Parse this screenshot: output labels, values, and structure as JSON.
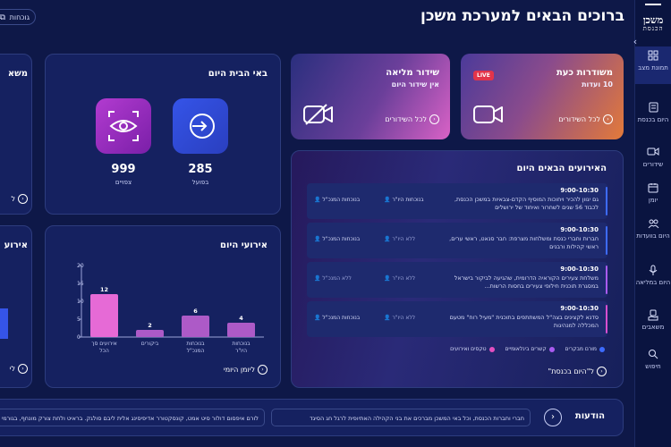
{
  "app": {
    "logo_line1": "משכן",
    "logo_line2": "הכנסת",
    "title": "ברוכים הבאים למערכת משכן",
    "header_link": "גוכחות"
  },
  "sidebar": {
    "items": [
      {
        "label": "תמונת מצב",
        "icon": "grid-icon"
      },
      {
        "label": "היום בכנסת",
        "icon": "document-icon"
      },
      {
        "label": "שידורים",
        "icon": "video-icon"
      },
      {
        "label": "יומן",
        "icon": "calendar-icon"
      },
      {
        "label": "היום בוועדות",
        "icon": "committee-icon"
      },
      {
        "label": "היום במליאה",
        "icon": "microphone-icon"
      },
      {
        "label": "משאבים",
        "icon": "hand-icon"
      },
      {
        "label": "חיפוש",
        "icon": "search-icon"
      }
    ]
  },
  "broadcast_live": {
    "title": "משודרות כעת",
    "subtitle": "10 ועדות",
    "badge": "LIVE",
    "link": "לכל השידורים"
  },
  "broadcast_full": {
    "title": "שידור מליאה",
    "subtitle": "אין שידור היום",
    "link": "לכל השידורים"
  },
  "visitors": {
    "title": "באי הבית היום",
    "active_count": "285",
    "active_label": "בפועל",
    "viewers_count": "999",
    "viewers_label": "צפויים"
  },
  "cut_cards": {
    "top_title": "משא",
    "top_link": "ל",
    "bottom_title": "אירוע",
    "bottom_link": "לי"
  },
  "events": {
    "title": "האירועים הבאים היום",
    "rows": [
      {
        "time": "9:00-10:30",
        "desc": "גם יגוון להכיר ויחוכות המוסיף הקדם-צבאיות במשכן הכנסת, לכבוד 56 שנים לשחרור ואיחוד של ירושלים",
        "m1": "בנוכחות היו\"ר",
        "m2": "בנוכחות המנכ\"ל",
        "m1_active": true,
        "m2_active": true,
        "color": "#3d6bff"
      },
      {
        "time": "9:00-10:30",
        "desc": "חברות וחברי כנסת ומשלחות מצרפת: חבר סנאט, ראשי ערים, ראשי קהילות ורבנים",
        "m1": "ללא היו\"ר",
        "m2": "בנוכחות המנכ\"ל",
        "m1_active": false,
        "m2_active": true,
        "color": "#3d6bff"
      },
      {
        "time": "9:00-10:30",
        "desc": "משלחת צעירים הקוראיה הדרומית, שהגיעה לביקור בישראל במסגרת תוכנית חילופי צעירים בחסות הרשות...",
        "m1": "ללא היו\"ר",
        "m2": "ללא המנכ\"ל",
        "m1_active": false,
        "m2_active": false,
        "color": "#a95bf0"
      },
      {
        "time": "9:00-10:30",
        "desc": "סדנא לקצינים בצה\"ל המשתתפים בתוכנית \"מעיל רוח\" מטעם המכללה למנהיגות",
        "m1": "ללא היו\"ר",
        "m2": "בנוכחות המנכ\"ל",
        "m1_active": false,
        "m2_active": true,
        "color": "#d64fd0"
      }
    ],
    "legend": [
      {
        "label": "מורם מבקרים",
        "color": "#3d6bff"
      },
      {
        "label": "קשרים בינלאומיים",
        "color": "#a95bf0"
      },
      {
        "label": "טקסים ואירועים",
        "color": "#e34fc0"
      }
    ],
    "link": "ל\"היום בכנסת\""
  },
  "chart": {
    "link": "ליומן היומי"
  },
  "chart_data": {
    "type": "bar",
    "title": "אירועי היום",
    "categories": [
      "בנוכחות היו\"ר",
      "בנוכחות המנכ\"ל",
      "ביקורים",
      "אירועים סך הכל"
    ],
    "values": [
      4,
      6,
      2,
      12
    ],
    "colors": [
      "#ad5ac7",
      "#ad5ac7",
      "#ad5ac7",
      "#e66ad6"
    ],
    "ylim": [
      0,
      20
    ],
    "yticks": [
      0,
      5,
      10,
      15,
      20
    ],
    "data_labels": true,
    "grid": false,
    "legend": "none"
  },
  "updates": {
    "title": "הודעות",
    "items": [
      "חברי וחברות הכנסת, וכל באי המשכן מברכים את בני הקהילה האתיופית לרגל חג הסיגד",
      "לורם איפסום דולור סיט אמט, קונסקטורר אדיפיסינג אלית ליבם סולגק. בראיט ולחת צורק מונחף, בגורמי"
    ]
  }
}
